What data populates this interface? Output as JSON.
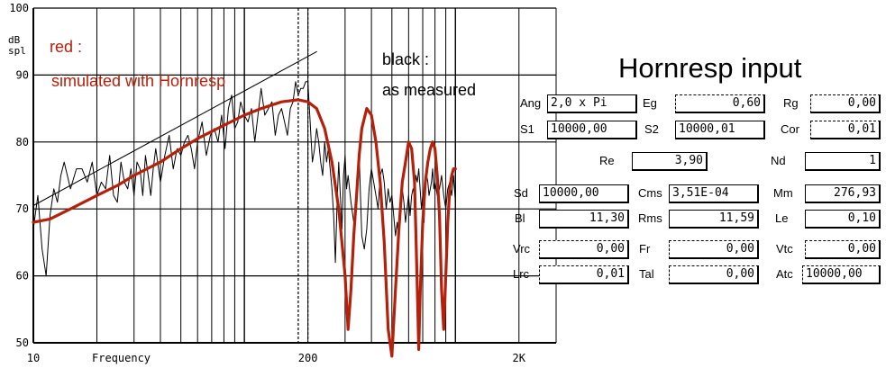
{
  "chart_data": {
    "type": "line",
    "x_scale": "log",
    "xlim": [
      10,
      3000
    ],
    "ylim": [
      50,
      100
    ],
    "grid": true,
    "xlabel": "Frequency",
    "ylabel": "dB\nspl",
    "x_tick_labels": [
      {
        "value": 10,
        "label": "10"
      },
      {
        "value": 200,
        "label": "200"
      },
      {
        "value": 2000,
        "label": "2K"
      }
    ],
    "y_tick_labels": [
      {
        "value": 50,
        "label": "50"
      },
      {
        "value": 60,
        "label": "60"
      },
      {
        "value": 70,
        "label": "70"
      },
      {
        "value": 80,
        "label": "80"
      },
      {
        "value": 90,
        "label": "90"
      },
      {
        "value": 100,
        "label": "100"
      }
    ],
    "annotations": {
      "red_label_1": "red :",
      "red_label_2": "simulated with Hornresp",
      "black_label_1": "black :",
      "black_label_2": "as measured"
    },
    "series": [
      {
        "color": "#000000",
        "x": [
          10,
          10.5,
          11,
          11.5,
          12,
          12.5,
          13,
          13.5,
          14,
          15,
          16,
          17,
          18,
          19,
          20,
          21,
          22,
          23,
          24,
          25,
          26,
          27,
          28,
          29,
          30,
          31,
          32,
          33,
          34,
          35,
          36,
          37,
          38,
          40,
          42,
          44,
          46,
          48,
          50,
          52,
          54,
          56,
          58,
          60,
          63,
          66,
          69,
          72,
          75,
          78,
          81,
          84,
          87,
          90,
          93,
          96,
          100,
          104,
          108,
          112,
          116,
          120,
          125,
          130,
          135,
          140,
          145,
          150,
          155,
          160,
          165,
          170,
          175,
          180,
          185,
          190,
          195,
          200,
          205,
          210,
          215,
          220,
          225,
          230,
          235,
          240,
          245,
          250,
          255,
          260,
          265,
          270,
          275,
          280,
          285,
          290,
          295,
          300,
          305,
          310,
          315,
          320,
          330,
          340,
          350,
          360,
          370,
          380,
          390,
          400,
          410,
          420,
          430,
          440,
          450,
          460,
          470,
          480,
          490,
          500,
          510,
          520,
          530,
          540,
          550,
          560,
          570,
          580,
          590,
          600,
          610,
          620,
          630,
          640,
          650,
          660,
          670,
          680,
          690,
          700,
          710,
          720,
          730,
          740,
          750,
          760,
          770,
          780,
          790,
          800,
          820,
          840,
          860,
          880,
          900,
          920,
          940,
          960,
          980,
          1000
        ],
        "y": [
          67,
          72,
          64,
          60,
          69,
          73,
          71,
          75,
          77,
          73,
          76,
          76,
          74,
          77,
          72,
          74,
          73,
          78,
          72,
          71,
          77,
          74,
          73,
          76,
          72,
          77,
          76,
          72,
          78,
          75,
          72,
          76,
          79,
          74,
          78,
          81,
          76,
          79,
          78,
          80,
          81,
          79,
          76,
          80,
          83,
          78,
          81,
          82,
          80,
          84,
          79,
          85,
          87,
          82,
          83,
          86,
          84,
          83,
          85,
          80,
          84,
          88,
          84,
          85,
          86,
          81,
          84,
          85,
          83,
          81,
          85,
          86,
          89,
          87,
          88,
          88,
          89,
          89,
          83,
          77,
          79,
          82,
          80,
          77,
          75,
          80,
          77,
          79,
          76,
          73,
          69,
          62,
          71,
          77,
          72,
          67,
          75,
          78,
          73,
          75,
          73,
          71,
          68,
          70,
          78,
          66,
          64,
          67,
          73,
          76,
          74,
          72,
          70,
          75,
          76,
          74,
          70,
          73,
          71,
          72,
          69,
          66,
          68,
          65,
          72,
          73,
          71,
          68,
          70,
          72,
          69,
          72,
          73,
          72,
          75,
          74,
          76,
          73,
          70,
          72,
          68,
          73,
          75,
          74,
          72,
          73,
          74,
          76,
          73,
          74,
          72,
          73,
          75,
          72,
          70,
          73,
          74,
          72,
          75,
          71
        ]
      },
      {
        "color": "#000000",
        "x": [
          10,
          220
        ],
        "y": [
          70.5,
          93.5
        ]
      },
      {
        "color": "#b5200b",
        "x": [
          10,
          12,
          15,
          20,
          25,
          30,
          40,
          50,
          60,
          80,
          100,
          120,
          150,
          180,
          200,
          220,
          240,
          260,
          280,
          300,
          310,
          320,
          330,
          340,
          350,
          360,
          380,
          400,
          420,
          440,
          460,
          480,
          500,
          520,
          540,
          560,
          580,
          600,
          620,
          640,
          650,
          660,
          670,
          680,
          700,
          720,
          740,
          760,
          780,
          800,
          820,
          840,
          860,
          880,
          900,
          920,
          940,
          960,
          980,
          1000
        ],
        "y": [
          68,
          68.5,
          70,
          72,
          73.5,
          75,
          77,
          79,
          80.5,
          82.5,
          84,
          85,
          86,
          86.3,
          86,
          85,
          82,
          77,
          70,
          60,
          52,
          58,
          66,
          72,
          78,
          82,
          85,
          84,
          80,
          74,
          65,
          52,
          48,
          58,
          67,
          74,
          77,
          80,
          79,
          74,
          66,
          58,
          49,
          57,
          68,
          74,
          77,
          79,
          80,
          79,
          75,
          69,
          58,
          52,
          60,
          68,
          73,
          75,
          76,
          76
        ]
      }
    ]
  },
  "hornresp": {
    "title": "Hornresp input",
    "fields": [
      {
        "label": "Ang",
        "value": "2,0 x Pi",
        "align": "left",
        "dashed": false
      },
      {
        "label": "Eg",
        "value": "0,60",
        "align": "right",
        "dashed": true
      },
      {
        "label": "Rg",
        "value": "0,00",
        "align": "right",
        "dashed": true
      },
      {
        "label": "S1",
        "value": "10000,00",
        "align": "left",
        "dashed": false
      },
      {
        "label": "S2",
        "value": "10000,01",
        "align": "left",
        "dashed": false
      },
      {
        "label": "Cor",
        "value": "0,01",
        "align": "right",
        "dashed": true
      },
      {
        "label": "Re",
        "value": "3,90",
        "align": "right",
        "dashed": false
      },
      {
        "label": "Nd",
        "value": "1",
        "align": "right",
        "dashed": false
      },
      {
        "label": "Sd",
        "value": "10000,00",
        "align": "left",
        "dashed": false
      },
      {
        "label": "Cms",
        "value": "3,51E-04",
        "align": "left",
        "dashed": false
      },
      {
        "label": "Mm",
        "value": "276,93",
        "align": "right",
        "dashed": false
      },
      {
        "label": "Bl",
        "value": "11,30",
        "align": "right",
        "dashed": false
      },
      {
        "label": "Rms",
        "value": "11,59",
        "align": "right",
        "dashed": false
      },
      {
        "label": "Le",
        "value": "0,10",
        "align": "right",
        "dashed": false
      },
      {
        "label": "Vrc",
        "value": "0,00",
        "align": "right",
        "dashed": true
      },
      {
        "label": "Fr",
        "value": "0,00",
        "align": "right",
        "dashed": true
      },
      {
        "label": "Vtc",
        "value": "0,00",
        "align": "right",
        "dashed": true
      },
      {
        "label": "Lrc",
        "value": "0,01",
        "align": "right",
        "dashed": true
      },
      {
        "label": "Tal",
        "value": "0,00",
        "align": "right",
        "dashed": true
      },
      {
        "label": "Atc",
        "value": "10000,00",
        "align": "left",
        "dashed": true
      }
    ]
  }
}
